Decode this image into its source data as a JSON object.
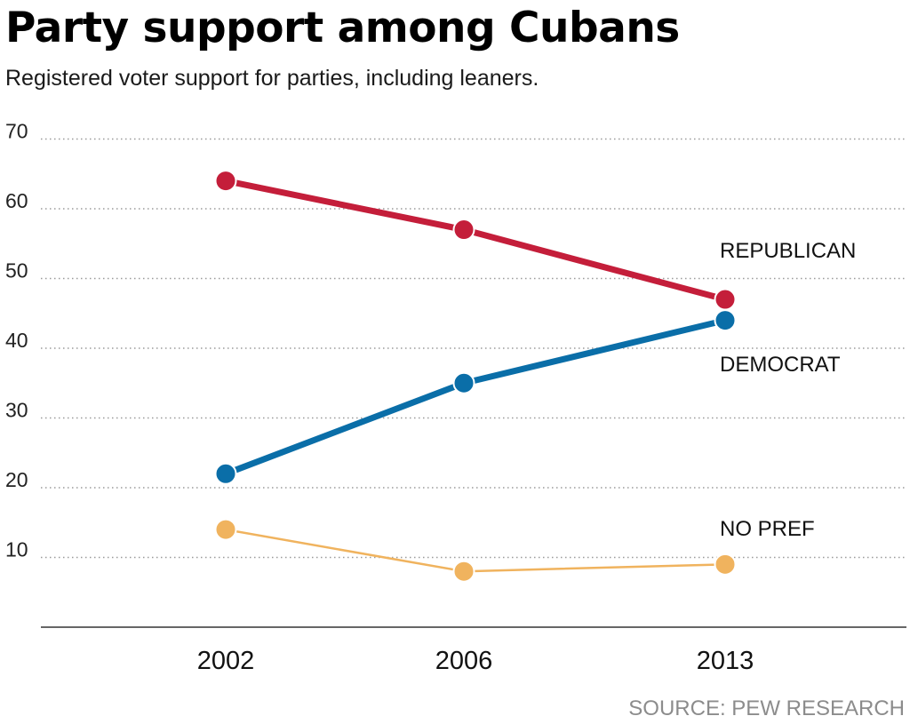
{
  "header": {
    "title": "Party support among Cubans",
    "subtitle": "Registered voter support for parties, including leaners."
  },
  "footer": {
    "source": "SOURCE: PEW RESEARCH"
  },
  "chart_data": {
    "type": "line",
    "title": "Party support among Cubans",
    "subtitle": "Registered voter support for parties, including leaners.",
    "xlabel": "",
    "ylabel": "",
    "categories": [
      "2002",
      "2006",
      "2013"
    ],
    "ylim": [
      0,
      70
    ],
    "yticks": [
      10,
      20,
      30,
      40,
      50,
      60,
      70
    ],
    "grid": "horizontal dotted",
    "legend": "direct labels at right",
    "series": [
      {
        "name": "REPUBLICAN",
        "values": [
          64,
          57,
          47
        ],
        "color": "#c41e3a",
        "weight": "thick"
      },
      {
        "name": "DEMOCRAT",
        "values": [
          22,
          35,
          44
        ],
        "color": "#0a6ea8",
        "weight": "thick"
      },
      {
        "name": "NO PREF",
        "values": [
          14,
          8,
          9
        ],
        "color": "#f0b35e",
        "weight": "thin"
      }
    ]
  }
}
